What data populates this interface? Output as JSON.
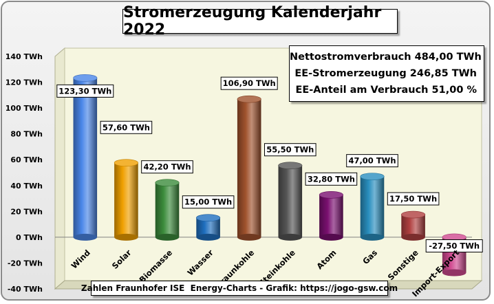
{
  "chart_data": {
    "type": "bar",
    "title": "Stromerzeugung Kalenderjahr 2022",
    "categories": [
      "Wind",
      "Solar",
      "Biomasse",
      "Wasser",
      "Braunkohle",
      "Steinkohle",
      "Atom",
      "Gas",
      "Sonstige",
      "Import-Export"
    ],
    "values": [
      123.3,
      57.6,
      42.2,
      15.0,
      106.9,
      55.5,
      32.8,
      47.0,
      17.5,
      -27.5
    ],
    "value_labels": [
      "123,30 TWh",
      "57,60 TWh",
      "42,20 TWh",
      "15,00 TWh",
      "106,90 TWh",
      "55,50 TWh",
      "32,80 TWh",
      "47,00 TWh",
      "17,50 TWh",
      "-27,50 TWh"
    ],
    "ylim": [
      -40,
      140
    ],
    "yticks": [
      140,
      120,
      100,
      80,
      60,
      40,
      20,
      0,
      -20,
      -40
    ],
    "ytick_labels": [
      "140 TWh",
      "120 TWh",
      "100 TWh",
      "80 TWh",
      "60 TWh",
      "40 TWh",
      "20 TWh",
      "0 TWh",
      "-20 TWh",
      "-40 TWh"
    ],
    "grid": false,
    "colors": [
      "#4a86e8",
      "#f0a000",
      "#3c8c3c",
      "#1f6fbf",
      "#a0522d",
      "#555555",
      "#7a1070",
      "#2a8fbf",
      "#b04040",
      "#d04a90"
    ],
    "stats": [
      "Nettostromverbrauch 484,00 TWh",
      "EE-Stromerzeugung 246,85 TWh",
      "EE-Anteil am Verbrauch 51,00 %"
    ],
    "source": "Zahlen Fraunhofer ISE  Energy-Charts - Grafik: https://jogo-gsw.com"
  }
}
